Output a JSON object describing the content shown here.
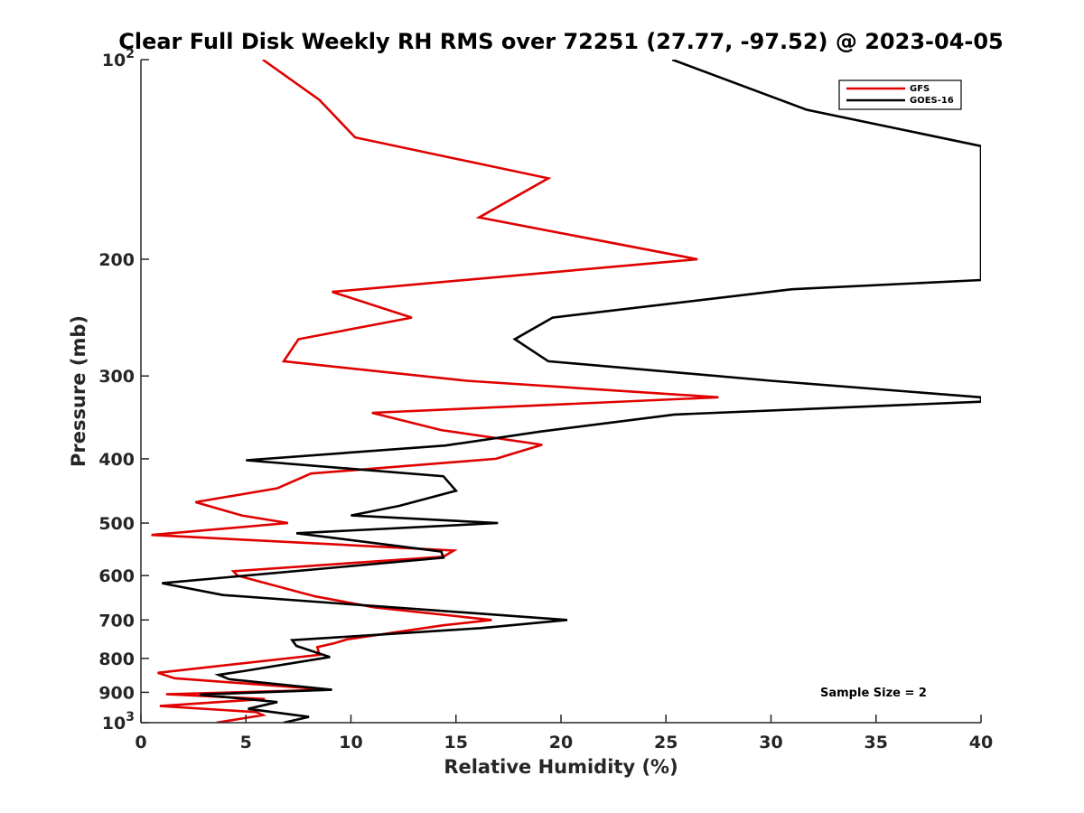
{
  "chart_data": {
    "type": "line",
    "title": "Clear Full Disk Weekly RH RMS over 72251 (27.77, -97.52) @ 2023-04-05",
    "xlabel": "Relative Humidity (%)",
    "ylabel": "Pressure (mb)",
    "xlim": [
      0,
      40
    ],
    "ylim": [
      100,
      1000
    ],
    "yscale": "log",
    "y_reversed": true,
    "grid": false,
    "legend_position": "top-right",
    "x_ticks": [
      {
        "value": 0,
        "label": "0"
      },
      {
        "value": 5,
        "label": "5"
      },
      {
        "value": 10,
        "label": "10"
      },
      {
        "value": 15,
        "label": "15"
      },
      {
        "value": 20,
        "label": "20"
      },
      {
        "value": 25,
        "label": "25"
      },
      {
        "value": 30,
        "label": "30"
      },
      {
        "value": 35,
        "label": "35"
      },
      {
        "value": 40,
        "label": "40"
      }
    ],
    "y_ticks": [
      {
        "value": 100,
        "base": "10",
        "exp": "2"
      },
      {
        "value": 200,
        "base": "200",
        "exp": ""
      },
      {
        "value": 300,
        "base": "300",
        "exp": ""
      },
      {
        "value": 400,
        "base": "400",
        "exp": ""
      },
      {
        "value": 500,
        "base": "500",
        "exp": ""
      },
      {
        "value": 600,
        "base": "600",
        "exp": ""
      },
      {
        "value": 700,
        "base": "700",
        "exp": ""
      },
      {
        "value": 800,
        "base": "800",
        "exp": ""
      },
      {
        "value": 900,
        "base": "900",
        "exp": ""
      },
      {
        "value": 1000,
        "base": "10",
        "exp": "3"
      }
    ],
    "annotation": "Sample Size = 2",
    "series": [
      {
        "name": "GFS",
        "color": "#e00000",
        "points": [
          [
            5.8,
            100
          ],
          [
            8.5,
            115
          ],
          [
            10.2,
            131
          ],
          [
            19.4,
            151
          ],
          [
            16.1,
            173
          ],
          [
            26.5,
            200
          ],
          [
            9.1,
            224
          ],
          [
            12.9,
            245
          ],
          [
            7.5,
            264
          ],
          [
            6.8,
            285
          ],
          [
            15.5,
            305
          ],
          [
            27.5,
            323
          ],
          [
            11.0,
            341
          ],
          [
            14.3,
            362
          ],
          [
            19.1,
            381
          ],
          [
            16.9,
            400
          ],
          [
            8.1,
            421
          ],
          [
            6.5,
            443
          ],
          [
            2.6,
            465
          ],
          [
            4.8,
            487
          ],
          [
            7.0,
            500
          ],
          [
            0.5,
            521
          ],
          [
            14.9,
            550
          ],
          [
            14.4,
            562
          ],
          [
            4.4,
            591
          ],
          [
            4.6,
            600
          ],
          [
            8.3,
            645
          ],
          [
            11.1,
            670
          ],
          [
            16.7,
            700
          ],
          [
            14.4,
            713
          ],
          [
            9.8,
            749
          ],
          [
            9.2,
            759
          ],
          [
            8.4,
            769
          ],
          [
            8.5,
            790
          ],
          [
            0.8,
            841
          ],
          [
            1.6,
            857
          ],
          [
            9.0,
            892
          ],
          [
            1.2,
            906
          ],
          [
            5.9,
            921
          ],
          [
            0.9,
            944
          ],
          [
            5.5,
            964
          ],
          [
            5.8,
            974
          ],
          [
            3.6,
            1000
          ]
        ]
      },
      {
        "name": "GOES-16",
        "color": "#000000",
        "points": [
          [
            25.3,
            100
          ],
          [
            31.7,
            119
          ],
          [
            40.0,
            135
          ],
          [
            40.0,
            215
          ],
          [
            31.0,
            222
          ],
          [
            19.6,
            245
          ],
          [
            17.8,
            264
          ],
          [
            19.4,
            285
          ],
          [
            30.0,
            305
          ],
          [
            40.0,
            323
          ],
          [
            40.0,
            328
          ],
          [
            25.4,
            343
          ],
          [
            19.0,
            364
          ],
          [
            14.5,
            382
          ],
          [
            5.0,
            402
          ],
          [
            14.4,
            425
          ],
          [
            15.0,
            447
          ],
          [
            12.3,
            471
          ],
          [
            10.0,
            487
          ],
          [
            17.0,
            500
          ],
          [
            7.4,
            518
          ],
          [
            14.3,
            552
          ],
          [
            14.4,
            564
          ],
          [
            1.0,
            616
          ],
          [
            3.9,
            642
          ],
          [
            20.3,
            700
          ],
          [
            16.2,
            720
          ],
          [
            7.2,
            751
          ],
          [
            7.4,
            766
          ],
          [
            8.3,
            783
          ],
          [
            9.0,
            796
          ],
          [
            5.0,
            835
          ],
          [
            3.7,
            847
          ],
          [
            4.2,
            860
          ],
          [
            9.1,
            892
          ],
          [
            2.8,
            907
          ],
          [
            6.5,
            931
          ],
          [
            5.1,
            953
          ],
          [
            8.0,
            980
          ],
          [
            6.8,
            1000
          ]
        ]
      }
    ]
  }
}
